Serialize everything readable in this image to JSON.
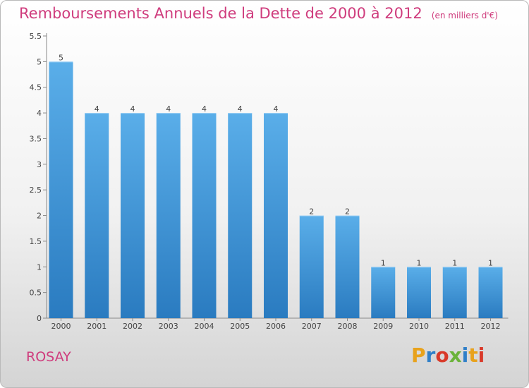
{
  "header": {
    "title": "Remboursements Annuels de la Dette de 2000 à 2012",
    "unit": "(en milliers d'€)"
  },
  "footer": {
    "commune": "ROSAY",
    "brand": "Proxiti"
  },
  "colors": {
    "bar_top": "#5aaee9",
    "bar_bottom": "#2a7bc0",
    "title": "#cf3c7d",
    "brand_letters": [
      "#e8a21c",
      "#2f7fc8",
      "#d93a2a",
      "#6bb33a",
      "#2f7fc8",
      "#e8a21c",
      "#d93a2a"
    ]
  },
  "chart_data": {
    "type": "bar",
    "categories": [
      "2000",
      "2001",
      "2002",
      "2003",
      "2004",
      "2005",
      "2006",
      "2007",
      "2008",
      "2009",
      "2010",
      "2011",
      "2012"
    ],
    "values": [
      5,
      4,
      4,
      4,
      4,
      4,
      4,
      2,
      2,
      1,
      1,
      1,
      1
    ],
    "data_labels": [
      "5",
      "4",
      "4",
      "4",
      "4",
      "4",
      "4",
      "2",
      "2",
      "1",
      "1",
      "1",
      "1"
    ],
    "yticks": [
      "0",
      "0.5",
      "1",
      "1.5",
      "2",
      "2.5",
      "3",
      "3.5",
      "4",
      "4.5",
      "5",
      "5.5"
    ],
    "ylim": [
      0,
      5.5
    ],
    "grid": false
  }
}
